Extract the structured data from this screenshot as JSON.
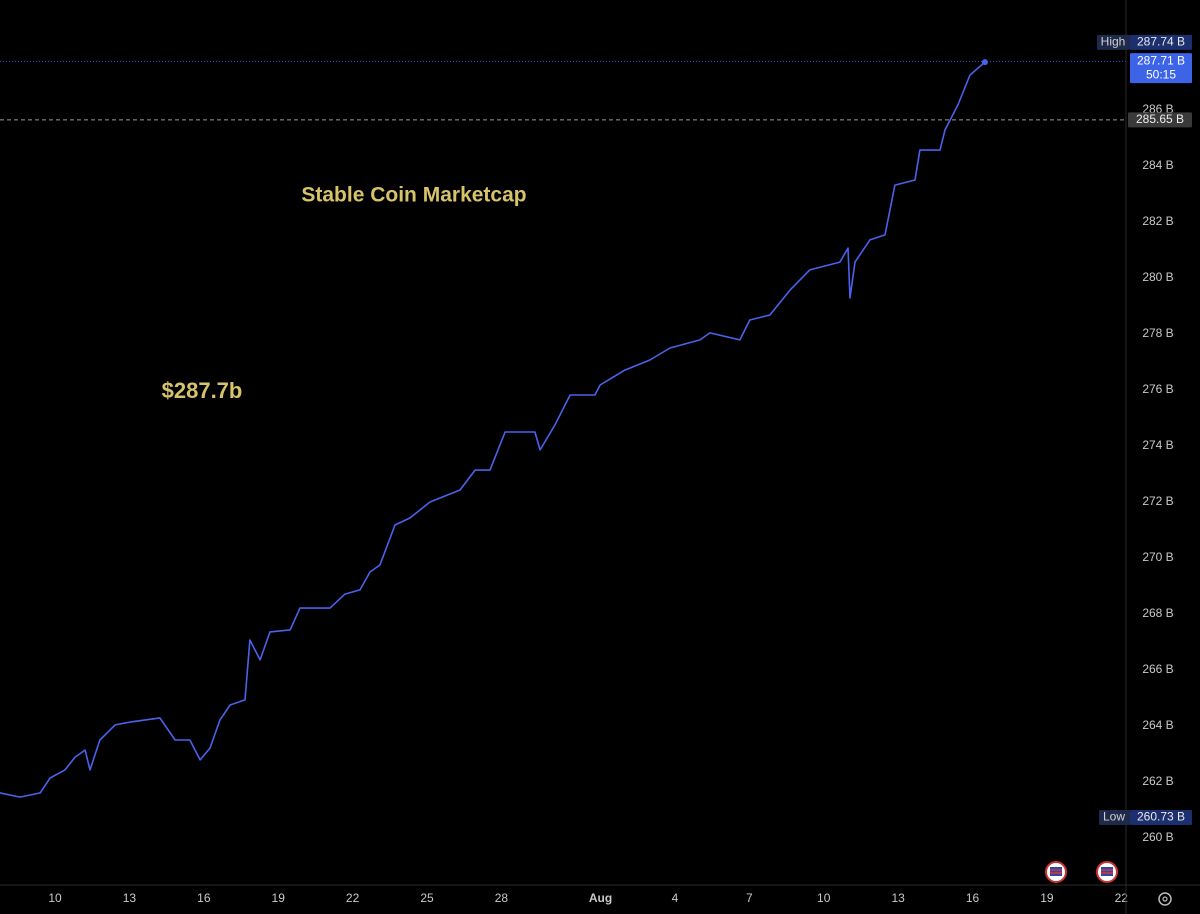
{
  "chart_data": {
    "type": "line",
    "title": "Stable Coin Marketcap",
    "annotation": "$287.7b",
    "x": [
      7.78,
      8.59,
      9.4,
      9.8,
      10.4,
      10.81,
      11.21,
      11.41,
      11.81,
      12.42,
      13.02,
      14.23,
      14.84,
      15.44,
      15.85,
      16.25,
      16.65,
      17.06,
      17.66,
      17.86,
      18.27,
      18.67,
      19.48,
      19.88,
      21.09,
      21.69,
      22.3,
      22.7,
      23.1,
      23.71,
      24.31,
      25.12,
      26.33,
      26.94,
      27.54,
      28.15,
      29.35,
      29.56,
      30.16,
      30.77,
      31.77,
      31.98,
      32.98,
      33.99,
      34.8,
      36.01,
      36.41,
      37.62,
      38.02,
      38.83,
      39.64,
      40.44,
      41.65,
      41.98,
      42.06,
      42.26,
      42.86,
      43.47,
      43.87,
      44.68,
      44.88,
      45.69,
      45.89,
      46.41,
      46.9,
      47.5
    ],
    "series": [
      {
        "name": "Stable Coin Marketcap",
        "color": "#4a62ec",
        "values": [
          261.61,
          261.46,
          261.61,
          262.14,
          262.43,
          262.89,
          263.14,
          262.43,
          263.5,
          264.04,
          264.14,
          264.29,
          263.5,
          263.5,
          262.79,
          263.21,
          264.21,
          264.75,
          264.93,
          267.07,
          266.36,
          267.36,
          267.43,
          268.21,
          268.21,
          268.71,
          268.86,
          269.5,
          269.75,
          271.18,
          271.43,
          272.0,
          272.43,
          273.14,
          273.14,
          274.5,
          274.5,
          273.86,
          274.75,
          275.82,
          275.82,
          276.18,
          276.71,
          277.07,
          277.5,
          277.79,
          278.04,
          277.79,
          278.5,
          278.68,
          279.57,
          280.29,
          280.57,
          281.07,
          279.29,
          280.57,
          281.36,
          281.54,
          283.32,
          283.5,
          284.57,
          284.57,
          285.29,
          286.18,
          287.25,
          287.71
        ]
      }
    ],
    "xlim": [
      7.78,
      53.19
    ],
    "ylim": [
      258.32,
      289.93
    ],
    "xticks": [
      10,
      13,
      16,
      19,
      22,
      25,
      28,
      {
        "value": 32,
        "label": "Aug"
      },
      {
        "value": 35,
        "label": "4"
      },
      {
        "value": 38,
        "label": "7"
      },
      {
        "value": 41,
        "label": "10"
      },
      {
        "value": 44,
        "label": "13"
      },
      {
        "value": 47,
        "label": "16"
      },
      {
        "value": 50,
        "label": "19"
      },
      {
        "value": 53,
        "label": "22"
      }
    ],
    "yticks": [
      {
        "value": 260,
        "label": "260 B"
      },
      {
        "value": 262,
        "label": "262 B"
      },
      {
        "value": 264,
        "label": "264 B"
      },
      {
        "value": 266,
        "label": "266 B"
      },
      {
        "value": 268,
        "label": "268 B"
      },
      {
        "value": 270,
        "label": "270 B"
      },
      {
        "value": 272,
        "label": "272 B"
      },
      {
        "value": 274,
        "label": "274 B"
      },
      {
        "value": 276,
        "label": "276 B"
      },
      {
        "value": 278,
        "label": "278 B"
      },
      {
        "value": 280,
        "label": "280 B"
      },
      {
        "value": 282,
        "label": "282 B"
      },
      {
        "value": 284,
        "label": "284 B"
      },
      {
        "value": 286,
        "label": "286 B"
      }
    ],
    "grid": true,
    "high": {
      "name": "High",
      "value": 287.74,
      "label": "287.74 B"
    },
    "last": {
      "value": 287.71,
      "label": "287.71 B",
      "countdown": "50:15"
    },
    "reference": {
      "value": 285.65,
      "label": "285.65 B"
    },
    "low": {
      "name": "Low",
      "value": 260.73,
      "label": "260.73 B"
    }
  }
}
